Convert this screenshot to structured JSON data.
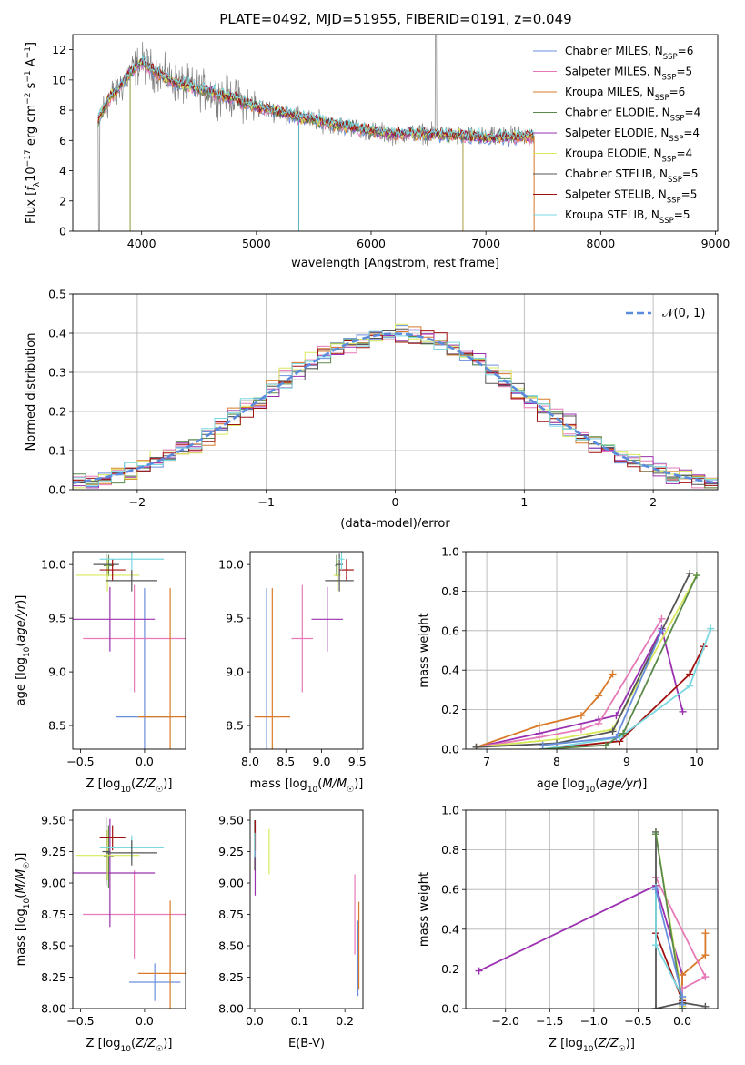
{
  "figure_title": "PLATE=0492, MJD=51955, FIBERID=0191, z=0.049",
  "colors": {
    "Chabrier MILES": "#6a8fdc",
    "Salpeter MILES": "#e67ab8",
    "Kroupa MILES": "#d97a28",
    "Chabrier ELODIE": "#5a8a4a",
    "Salpeter ELODIE": "#9b30b0",
    "Kroupa ELODIE": "#d8e85a",
    "Chabrier STELIB": "#555555",
    "Salpeter STELIB": "#a01010",
    "Kroupa STELIB": "#7ad8e0",
    "spectrum": "#808080",
    "normal": "#5b8bdc"
  },
  "chart_data": [
    {
      "id": "spectrum",
      "type": "line",
      "xlabel": "wavelength [Angstrom, rest frame]",
      "ylabel_parts": [
        "Flux [f",
        "λ",
        "10",
        "−17",
        " erg cm",
        "−2",
        " s",
        "−1",
        " A",
        "−1",
        "]"
      ],
      "xlim": [
        3400,
        9020
      ],
      "ylim": [
        0,
        13
      ],
      "xticks": [
        "4000",
        "5000",
        "6000",
        "7000",
        "8000",
        "9000"
      ],
      "yticks": [
        "0",
        "2",
        "4",
        "6",
        "8",
        "10",
        "12"
      ],
      "legend_position": "top-right",
      "legend": [
        {
          "name": "Chabrier MILES",
          "nssp": "6"
        },
        {
          "name": "Salpeter MILES",
          "nssp": "5"
        },
        {
          "name": "Kroupa MILES",
          "nssp": "6"
        },
        {
          "name": "Chabrier ELODIE",
          "nssp": "4"
        },
        {
          "name": "Salpeter ELODIE",
          "nssp": "4"
        },
        {
          "name": "Kroupa ELODIE",
          "nssp": "4"
        },
        {
          "name": "Chabrier STELIB",
          "nssp": "5"
        },
        {
          "name": "Salpeter STELIB",
          "nssp": "5"
        },
        {
          "name": "Kroupa STELIB",
          "nssp": "5"
        }
      ],
      "nssp_label": "N",
      "nssp_sub": "SSP",
      "continuum": [
        [
          3620,
          7.3
        ],
        [
          3700,
          8.6
        ],
        [
          3800,
          9.4
        ],
        [
          3900,
          10.5
        ],
        [
          4000,
          11.2
        ],
        [
          4100,
          10.6
        ],
        [
          4200,
          10.2
        ],
        [
          4300,
          9.8
        ],
        [
          4400,
          9.6
        ],
        [
          4600,
          9.2
        ],
        [
          4800,
          8.8
        ],
        [
          5000,
          8.2
        ],
        [
          5200,
          7.9
        ],
        [
          5400,
          7.5
        ],
        [
          5600,
          7.2
        ],
        [
          5800,
          6.9
        ],
        [
          6000,
          6.6
        ],
        [
          6200,
          6.4
        ],
        [
          6400,
          6.5
        ],
        [
          6600,
          6.4
        ],
        [
          6800,
          6.3
        ],
        [
          7000,
          6.2
        ],
        [
          7200,
          6.2
        ],
        [
          7400,
          6.3
        ]
      ]
    },
    {
      "id": "residual_hist",
      "type": "histogram",
      "xlabel": "(data-model)/error",
      "ylabel": "Normed distribution",
      "xlim": [
        -2.5,
        2.5
      ],
      "ylim": [
        0,
        0.5
      ],
      "xticks": [
        "−2",
        "−1",
        "0",
        "1",
        "2"
      ],
      "yticks": [
        "0.0",
        "0.1",
        "0.2",
        "0.3",
        "0.4",
        "0.5"
      ],
      "legend_label": "𝒩(0, 1)",
      "legend_position": "top-right",
      "grid": true
    },
    {
      "id": "age_vs_Z",
      "type": "errorbar",
      "xlabel": "Z [log10(Z/Z☉)]",
      "ylabel": "age [log10(age/yr)]",
      "xlim": [
        -0.56,
        0.32
      ],
      "ylim": [
        8.28,
        10.12
      ],
      "xticks": [
        "−0.5",
        "0.0"
      ],
      "yticks": [
        "8.5",
        "9.0",
        "9.5",
        "10.0"
      ],
      "points": [
        {
          "model": "Chabrier MILES",
          "x": 0.0,
          "xerr": 0.22,
          "y": 8.58,
          "yerr": 1.2
        },
        {
          "model": "Salpeter MILES",
          "x": -0.08,
          "xerr": 0.4,
          "y": 9.31,
          "yerr": 0.5
        },
        {
          "model": "Kroupa MILES",
          "x": 0.2,
          "xerr": 0.25,
          "y": 8.58,
          "yerr": 1.2
        },
        {
          "model": "Chabrier ELODIE",
          "x": -0.28,
          "xerr": 0.04,
          "y": 9.99,
          "yerr": 0.1
        },
        {
          "model": "Salpeter ELODIE",
          "x": -0.27,
          "xerr": 0.35,
          "y": 9.49,
          "yerr": 0.3
        },
        {
          "model": "Kroupa ELODIE",
          "x": -0.29,
          "xerr": 0.25,
          "y": 9.9,
          "yerr": 0.15
        },
        {
          "model": "Chabrier STELIB",
          "x": -0.3,
          "xerr": 0.1,
          "y": 10.0,
          "yerr": 0.1
        },
        {
          "model": "Salpeter STELIB",
          "x": -0.25,
          "xerr": 0.1,
          "y": 9.95,
          "yerr": 0.1
        },
        {
          "model": "Kroupa STELIB",
          "x": -0.1,
          "xerr": 0.25,
          "y": 10.05,
          "yerr": 0.1
        },
        {
          "model": "Chabrier STELIB",
          "x": -0.1,
          "xerr": 0.2,
          "y": 9.85,
          "yerr": 0.1
        }
      ]
    },
    {
      "id": "age_vs_mass",
      "type": "errorbar",
      "xlabel": "mass [log10(M/M☉)]",
      "xlim": [
        8.0,
        9.58
      ],
      "ylim": [
        8.28,
        10.12
      ],
      "xticks": [
        "8.0",
        "8.5",
        "9.0",
        "9.5"
      ],
      "yticks": [
        "8.5",
        "9.0",
        "9.5",
        "10.0"
      ],
      "points": [
        {
          "model": "Chabrier MILES",
          "x": 8.23,
          "xerr": 0.0,
          "y": 8.58,
          "yerr": 1.2
        },
        {
          "model": "Salpeter MILES",
          "x": 8.73,
          "xerr": 0.15,
          "y": 9.31,
          "yerr": 0.5
        },
        {
          "model": "Kroupa MILES",
          "x": 8.31,
          "xerr": 0.25,
          "y": 8.58,
          "yerr": 1.2
        },
        {
          "model": "Chabrier ELODIE",
          "x": 9.21,
          "xerr": 0.02,
          "y": 9.99,
          "yerr": 0.1
        },
        {
          "model": "Salpeter ELODIE",
          "x": 9.08,
          "xerr": 0.22,
          "y": 9.49,
          "yerr": 0.3
        },
        {
          "model": "Kroupa ELODIE",
          "x": 9.22,
          "xerr": 0.05,
          "y": 9.9,
          "yerr": 0.15
        },
        {
          "model": "Chabrier STELIB",
          "x": 9.25,
          "xerr": 0.05,
          "y": 10.0,
          "yerr": 0.1
        },
        {
          "model": "Salpeter STELIB",
          "x": 9.35,
          "xerr": 0.1,
          "y": 9.95,
          "yerr": 0.1
        },
        {
          "model": "Kroupa STELIB",
          "x": 9.28,
          "xerr": 0.04,
          "y": 10.05,
          "yerr": 0.1
        },
        {
          "model": "Chabrier STELIB",
          "x": 9.25,
          "xerr": 0.2,
          "y": 9.85,
          "yerr": 0.1
        }
      ]
    },
    {
      "id": "weight_vs_age",
      "type": "line",
      "xlabel": "age [log10(age/yr)]",
      "ylabel": "mass weight",
      "xlim": [
        6.7,
        10.3
      ],
      "ylim": [
        0,
        1.0
      ],
      "xticks": [
        "7",
        "8",
        "9",
        "10"
      ],
      "yticks": [
        "0.0",
        "0.2",
        "0.4",
        "0.6",
        "0.8",
        "1.0"
      ],
      "grid": true,
      "series": [
        {
          "model": "Salpeter ELODIE",
          "points": [
            [
              6.85,
              0.01
            ],
            [
              7.75,
              0.08
            ],
            [
              8.6,
              0.15
            ],
            [
              8.85,
              0.17
            ],
            [
              9.5,
              0.61
            ],
            [
              9.8,
              0.19
            ]
          ]
        },
        {
          "model": "Kroupa MILES",
          "points": [
            [
              6.85,
              0.01
            ],
            [
              7.75,
              0.12
            ],
            [
              8.35,
              0.17
            ],
            [
              8.6,
              0.27
            ],
            [
              8.8,
              0.38
            ]
          ]
        },
        {
          "model": "Salpeter MILES",
          "points": [
            [
              6.85,
              0.01
            ],
            [
              7.75,
              0.06
            ],
            [
              8.35,
              0.1
            ],
            [
              8.6,
              0.13
            ],
            [
              9.5,
              0.66
            ]
          ]
        },
        {
          "model": "Kroupa ELODIE",
          "points": [
            [
              6.85,
              0.01
            ],
            [
              8.0,
              0.05
            ],
            [
              8.8,
              0.1
            ],
            [
              10.0,
              0.88
            ]
          ]
        },
        {
          "model": "Chabrier STELIB",
          "points": [
            [
              6.85,
              0.01
            ],
            [
              8.0,
              0.03
            ],
            [
              8.8,
              0.09
            ],
            [
              9.9,
              0.89
            ]
          ]
        },
        {
          "model": "Salpeter STELIB",
          "points": [
            [
              7.8,
              0.0
            ],
            [
              8.9,
              0.04
            ],
            [
              9.9,
              0.38
            ],
            [
              10.1,
              0.52
            ]
          ]
        },
        {
          "model": "Kroupa STELIB",
          "points": [
            [
              7.8,
              0.0
            ],
            [
              8.9,
              0.06
            ],
            [
              9.9,
              0.32
            ],
            [
              10.2,
              0.61
            ]
          ]
        },
        {
          "model": "Chabrier ELODIE",
          "points": [
            [
              7.8,
              0.0
            ],
            [
              8.7,
              0.02
            ],
            [
              8.95,
              0.08
            ],
            [
              10.0,
              0.88
            ]
          ]
        },
        {
          "model": "Chabrier MILES",
          "points": [
            [
              7.8,
              0.02
            ],
            [
              8.85,
              0.06
            ],
            [
              9.5,
              0.6
            ]
          ]
        }
      ]
    },
    {
      "id": "mass_vs_Z",
      "type": "errorbar",
      "xlabel": "Z [log10(Z/Z☉)]",
      "ylabel": "mass [log10(M/M☉)]",
      "xlim": [
        -0.56,
        0.32
      ],
      "ylim": [
        8.0,
        9.58
      ],
      "xticks": [
        "−0.5",
        "0.0"
      ],
      "yticks": [
        "8.00",
        "8.25",
        "8.50",
        "8.75",
        "9.00",
        "9.25",
        "9.50"
      ],
      "points": [
        {
          "model": "Chabrier MILES",
          "x": 0.08,
          "xerr": 0.2,
          "y": 8.21,
          "yerr": 0.15
        },
        {
          "model": "Salpeter MILES",
          "x": -0.08,
          "xerr": 0.4,
          "y": 8.75,
          "yerr": 0.35
        },
        {
          "model": "Kroupa MILES",
          "x": 0.2,
          "xerr": 0.25,
          "y": 8.28,
          "yerr": 0.58
        },
        {
          "model": "Chabrier ELODIE",
          "x": -0.28,
          "xerr": 0.04,
          "y": 9.21,
          "yerr": 0.25
        },
        {
          "model": "Salpeter ELODIE",
          "x": -0.27,
          "xerr": 0.35,
          "y": 9.08,
          "yerr": 0.43
        },
        {
          "model": "Kroupa ELODIE",
          "x": -0.29,
          "xerr": 0.25,
          "y": 9.22,
          "yerr": 0.2
        },
        {
          "model": "Chabrier STELIB",
          "x": -0.3,
          "xerr": 0.03,
          "y": 9.25,
          "yerr": 0.27
        },
        {
          "model": "Salpeter STELIB",
          "x": -0.25,
          "xerr": 0.1,
          "y": 9.36,
          "yerr": 0.1
        },
        {
          "model": "Kroupa STELIB",
          "x": -0.1,
          "xerr": 0.25,
          "y": 9.28,
          "yerr": 0.1
        },
        {
          "model": "Chabrier STELIB",
          "x": -0.1,
          "xerr": 0.2,
          "y": 9.24,
          "yerr": 0.1
        }
      ]
    },
    {
      "id": "mass_vs_EBV",
      "type": "errorbar",
      "xlabel": "E(B-V)",
      "xlim": [
        -0.01,
        0.24
      ],
      "ylim": [
        8.0,
        9.58
      ],
      "xticks": [
        "0.0",
        "0.1",
        "0.2"
      ],
      "yticks": [
        "8.00",
        "8.25",
        "8.50",
        "8.75",
        "9.00",
        "9.25",
        "9.50"
      ],
      "points": [
        {
          "model": "Chabrier MILES",
          "x": 0.229,
          "xerr": 0.0,
          "y": 8.4,
          "yerr": 0.3
        },
        {
          "model": "Salpeter MILES",
          "x": 0.222,
          "xerr": 0.0,
          "y": 8.75,
          "yerr": 0.32
        },
        {
          "model": "Kroupa MILES",
          "x": 0.231,
          "xerr": 0.0,
          "y": 8.5,
          "yerr": 0.35
        },
        {
          "model": "Salpeter ELODIE",
          "x": 0.001,
          "xerr": 0.0,
          "y": 9.2,
          "yerr": 0.3
        },
        {
          "model": "Kroupa ELODIE",
          "x": 0.032,
          "xerr": 0.0,
          "y": 9.25,
          "yerr": 0.18
        },
        {
          "model": "Chabrier STELIB",
          "x": 0.0,
          "xerr": 0.0,
          "y": 9.3,
          "yerr": 0.2
        },
        {
          "model": "Salpeter STELIB",
          "x": 0.001,
          "xerr": 0.0,
          "y": 9.38,
          "yerr": 0.12
        },
        {
          "model": "Kroupa STELIB",
          "x": 0.0,
          "xerr": 0.0,
          "y": 9.3,
          "yerr": 0.1
        }
      ]
    },
    {
      "id": "weight_vs_Z",
      "type": "line",
      "xlabel": "Z [log10(Z/Z☉)]",
      "ylabel": "mass weight",
      "xlim": [
        -2.45,
        0.4
      ],
      "ylim": [
        0,
        1.0
      ],
      "xticks": [
        "−2.0",
        "−1.5",
        "−1.0",
        "−0.5",
        "0.0"
      ],
      "yticks": [
        "0.0",
        "0.2",
        "0.4",
        "0.6",
        "0.8",
        "1.0"
      ],
      "grid": true,
      "series": [
        {
          "model": "Salpeter ELODIE",
          "points": [
            [
              -2.3,
              0.19
            ],
            [
              -0.3,
              0.62
            ],
            [
              0.0,
              0.17
            ],
            [
              0.0,
              0.01
            ]
          ]
        },
        {
          "model": "Kroupa MILES",
          "points": [
            [
              0.0,
              0.01
            ],
            [
              0.0,
              0.17
            ],
            [
              0.26,
              0.27
            ],
            [
              0.26,
              0.38
            ]
          ]
        },
        {
          "model": "Salpeter MILES",
          "points": [
            [
              0.0,
              0.06
            ],
            [
              0.0,
              0.1
            ],
            [
              0.26,
              0.16
            ],
            [
              -0.3,
              0.66
            ]
          ]
        },
        {
          "model": "Kroupa ELODIE",
          "points": [
            [
              -0.3,
              0.88
            ],
            [
              0.0,
              0.05
            ],
            [
              0.0,
              0.01
            ]
          ]
        },
        {
          "model": "Chabrier STELIB",
          "points": [
            [
              -0.3,
              0.89
            ],
            [
              -0.3,
              0.0
            ],
            [
              0.0,
              0.03
            ],
            [
              0.26,
              0.01
            ]
          ]
        },
        {
          "model": "Salpeter STELIB",
          "points": [
            [
              -0.3,
              0.38
            ],
            [
              0.0,
              0.04
            ],
            [
              0.0,
              0.0
            ]
          ]
        },
        {
          "model": "Kroupa STELIB",
          "points": [
            [
              -0.3,
              0.61
            ],
            [
              -0.3,
              0.32
            ],
            [
              0.0,
              0.06
            ],
            [
              0.0,
              0.0
            ]
          ]
        },
        {
          "model": "Chabrier ELODIE",
          "points": [
            [
              -0.3,
              0.88
            ],
            [
              0.0,
              0.02
            ],
            [
              0.0,
              0.0
            ]
          ]
        },
        {
          "model": "Chabrier MILES",
          "points": [
            [
              -0.3,
              0.6
            ],
            [
              0.0,
              0.06
            ],
            [
              0.0,
              0.02
            ]
          ]
        }
      ]
    }
  ]
}
